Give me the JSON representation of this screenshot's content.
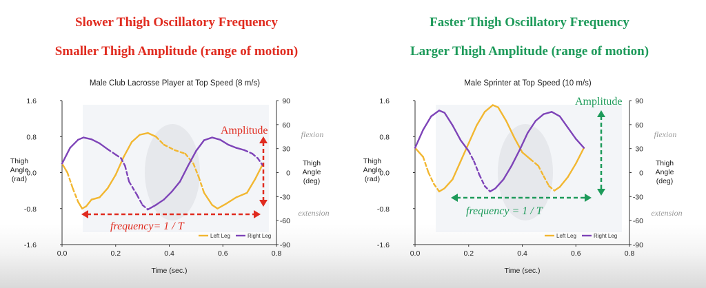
{
  "colors": {
    "left_leg": "#f2b731",
    "right_leg": "#7e44b8",
    "red_annotation": "#e02b1f",
    "green_annotation": "#1d9a5a",
    "side_note": "#9a9a9a"
  },
  "panels": [
    {
      "heading_line1": "Slower Thigh Oscillatory Frequency",
      "heading_line2": "Smaller Thigh Amplitude (range of motion)",
      "heading_color": "#e02b1f",
      "annotation_amplitude": "Amplitude",
      "annotation_frequency": "frequency= 1 / T"
    },
    {
      "heading_line1": "Faster Thigh Oscillatory Frequency",
      "heading_line2": "Larger Thigh Amplitude (range of motion)",
      "heading_color": "#1d9a5a",
      "annotation_amplitude": "Amplitude",
      "annotation_frequency": "frequency = 1 / T"
    }
  ],
  "chart_data": [
    {
      "type": "line",
      "title": "Male Club Lacrosse Player at Top Speed (8 m/s)",
      "xlabel": "Time (sec.)",
      "ylabel_left": [
        "Thigh",
        "Angle",
        "(rad)"
      ],
      "ylabel_right": [
        "Thigh",
        "Angle",
        "(deg)"
      ],
      "xlim": [
        0.0,
        0.8
      ],
      "ylim": [
        -1.6,
        1.6
      ],
      "x_ticks": [
        "0.0",
        "0.2",
        "0.4",
        "0.6",
        "0.8"
      ],
      "y_ticks_left": [
        "1.6",
        "0.8",
        "0.0",
        "-0.8",
        "-1.6"
      ],
      "y_ticks_right": [
        "90",
        "60",
        "30",
        "0",
        "-30",
        "-60",
        "-90"
      ],
      "side_labels": {
        "top": "flexion",
        "bottom": "extension"
      },
      "legend": [
        "Left Leg",
        "Right Leg"
      ],
      "series": [
        {
          "name": "Left Leg",
          "points": [
            [
              0.0,
              0.2
            ],
            [
              0.02,
              0.0
            ],
            [
              0.04,
              -0.35
            ],
            [
              0.06,
              -0.65
            ],
            [
              0.075,
              -0.8
            ],
            [
              0.09,
              -0.75
            ],
            [
              0.11,
              -0.6
            ],
            [
              0.14,
              -0.55
            ],
            [
              0.17,
              -0.35
            ],
            [
              0.2,
              -0.05
            ],
            [
              0.23,
              0.35
            ],
            [
              0.26,
              0.68
            ],
            [
              0.29,
              0.84
            ],
            [
              0.32,
              0.88
            ],
            [
              0.35,
              0.8
            ],
            [
              0.38,
              0.62
            ],
            [
              0.42,
              0.5
            ],
            [
              0.46,
              0.42
            ],
            [
              0.49,
              0.2
            ],
            [
              0.51,
              -0.1
            ],
            [
              0.53,
              -0.45
            ],
            [
              0.56,
              -0.72
            ],
            [
              0.58,
              -0.8
            ],
            [
              0.61,
              -0.7
            ],
            [
              0.65,
              -0.55
            ],
            [
              0.69,
              -0.45
            ],
            [
              0.72,
              -0.15
            ],
            [
              0.75,
              0.2
            ]
          ],
          "dashed_ranges": [
            [
              0.02,
              0.06
            ],
            [
              0.36,
              0.48
            ],
            [
              0.49,
              0.54
            ]
          ]
        },
        {
          "name": "Right Leg",
          "points": [
            [
              0.0,
              0.2
            ],
            [
              0.03,
              0.55
            ],
            [
              0.06,
              0.73
            ],
            [
              0.08,
              0.78
            ],
            [
              0.11,
              0.74
            ],
            [
              0.14,
              0.65
            ],
            [
              0.17,
              0.52
            ],
            [
              0.2,
              0.4
            ],
            [
              0.22,
              0.32
            ],
            [
              0.235,
              0.15
            ],
            [
              0.25,
              -0.2
            ],
            [
              0.28,
              -0.5
            ],
            [
              0.3,
              -0.72
            ],
            [
              0.32,
              -0.82
            ],
            [
              0.35,
              -0.72
            ],
            [
              0.38,
              -0.6
            ],
            [
              0.41,
              -0.42
            ],
            [
              0.44,
              -0.2
            ],
            [
              0.47,
              0.15
            ],
            [
              0.5,
              0.48
            ],
            [
              0.53,
              0.72
            ],
            [
              0.56,
              0.78
            ],
            [
              0.59,
              0.73
            ],
            [
              0.62,
              0.62
            ],
            [
              0.65,
              0.55
            ],
            [
              0.68,
              0.5
            ],
            [
              0.71,
              0.42
            ],
            [
              0.73,
              0.32
            ],
            [
              0.75,
              0.15
            ]
          ],
          "dashed_ranges": [
            [
              0.17,
              0.24
            ],
            [
              0.24,
              0.31
            ],
            [
              0.69,
              0.75
            ]
          ]
        }
      ]
    },
    {
      "type": "line",
      "title": "Male Sprinter at Top Speed (10 m/s)",
      "xlabel": "Time (sec.)",
      "ylabel_left": [
        "Thigh",
        "Angle",
        "(rad)"
      ],
      "ylabel_right": [
        "Thigh",
        "Angle",
        "(deg)"
      ],
      "xlim": [
        0.0,
        0.8
      ],
      "ylim": [
        -1.6,
        1.6
      ],
      "x_ticks": [
        "0.0",
        "0.2",
        "0.4",
        "0.6",
        "0.8"
      ],
      "y_ticks_left": [
        "1.6",
        "0.8",
        "0.0",
        "-0.8",
        "-1.6"
      ],
      "y_ticks_right": [
        "90",
        "60",
        "30",
        "0",
        "-30",
        "-60",
        "-90"
      ],
      "side_labels": {
        "top": "flexion",
        "bottom": "extension"
      },
      "legend": [
        "Left Leg",
        "Right Leg"
      ],
      "series": [
        {
          "name": "Left Leg",
          "points": [
            [
              0.0,
              0.55
            ],
            [
              0.03,
              0.35
            ],
            [
              0.05,
              0.0
            ],
            [
              0.07,
              -0.25
            ],
            [
              0.09,
              -0.42
            ],
            [
              0.11,
              -0.35
            ],
            [
              0.14,
              -0.15
            ],
            [
              0.17,
              0.25
            ],
            [
              0.2,
              0.65
            ],
            [
              0.23,
              1.05
            ],
            [
              0.26,
              1.35
            ],
            [
              0.29,
              1.5
            ],
            [
              0.31,
              1.45
            ],
            [
              0.34,
              1.15
            ],
            [
              0.37,
              0.78
            ],
            [
              0.4,
              0.45
            ],
            [
              0.43,
              0.3
            ],
            [
              0.46,
              0.15
            ],
            [
              0.48,
              -0.08
            ],
            [
              0.5,
              -0.3
            ],
            [
              0.52,
              -0.4
            ],
            [
              0.54,
              -0.32
            ],
            [
              0.57,
              -0.1
            ],
            [
              0.6,
              0.2
            ],
            [
              0.63,
              0.55
            ]
          ],
          "dashed_ranges": [
            [
              0.02,
              0.08
            ],
            [
              0.44,
              0.52
            ]
          ]
        },
        {
          "name": "Right Leg",
          "points": [
            [
              0.0,
              0.55
            ],
            [
              0.03,
              0.95
            ],
            [
              0.06,
              1.25
            ],
            [
              0.09,
              1.38
            ],
            [
              0.11,
              1.33
            ],
            [
              0.14,
              1.05
            ],
            [
              0.17,
              0.72
            ],
            [
              0.2,
              0.48
            ],
            [
              0.22,
              0.25
            ],
            [
              0.24,
              -0.05
            ],
            [
              0.26,
              -0.3
            ],
            [
              0.28,
              -0.42
            ],
            [
              0.3,
              -0.35
            ],
            [
              0.33,
              -0.15
            ],
            [
              0.36,
              0.15
            ],
            [
              0.39,
              0.5
            ],
            [
              0.42,
              0.88
            ],
            [
              0.45,
              1.15
            ],
            [
              0.48,
              1.3
            ],
            [
              0.51,
              1.35
            ],
            [
              0.54,
              1.25
            ],
            [
              0.57,
              1.0
            ],
            [
              0.6,
              0.75
            ],
            [
              0.63,
              0.55
            ]
          ],
          "dashed_ranges": [
            [
              0.19,
              0.27
            ]
          ]
        }
      ]
    }
  ]
}
